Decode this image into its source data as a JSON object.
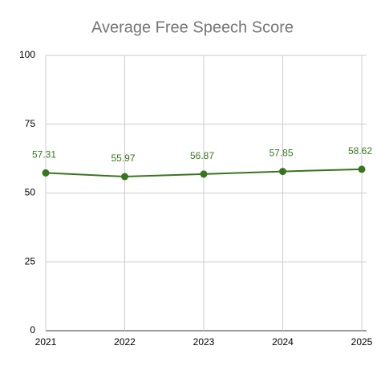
{
  "chart_data": {
    "type": "line",
    "title": "Average Free Speech Score",
    "categories": [
      "2021",
      "2022",
      "2023",
      "2024",
      "2025"
    ],
    "series": [
      {
        "name": "Average Free Speech Score",
        "color": "#38761d",
        "values": [
          57.31,
          55.97,
          56.87,
          57.85,
          58.62
        ]
      }
    ],
    "ylim": [
      0,
      100
    ],
    "yticks": [
      0,
      25,
      50,
      75,
      100
    ],
    "grid": true
  }
}
